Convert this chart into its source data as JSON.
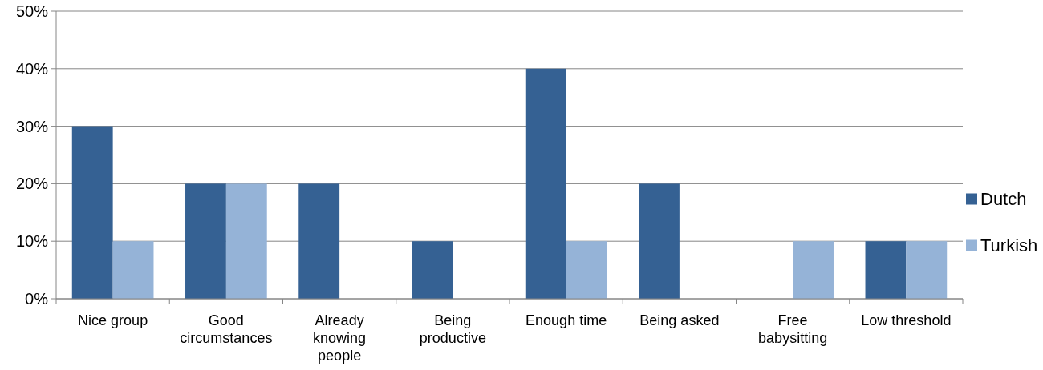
{
  "chart_data": {
    "type": "bar",
    "categories": [
      "Nice group",
      "Good circumstances",
      "Already knowing people",
      "Being productive",
      "Enough time",
      "Being asked",
      "Free babysitting",
      "Low threshold"
    ],
    "series": [
      {
        "name": "Dutch",
        "color": "#356193",
        "values": [
          30,
          20,
          20,
          10,
          40,
          20,
          0,
          10
        ]
      },
      {
        "name": "Turkish",
        "color": "#95b3d7",
        "values": [
          10,
          20,
          0,
          0,
          10,
          0,
          10,
          10
        ]
      }
    ],
    "ylim": [
      0,
      50
    ],
    "yticks": [
      {
        "value": 0,
        "label": "0%"
      },
      {
        "value": 10,
        "label": "10%"
      },
      {
        "value": 20,
        "label": "20%"
      },
      {
        "value": 30,
        "label": "30%"
      },
      {
        "value": 40,
        "label": "40%"
      },
      {
        "value": 50,
        "label": "50%"
      }
    ],
    "grid": "y",
    "legend": "right"
  }
}
